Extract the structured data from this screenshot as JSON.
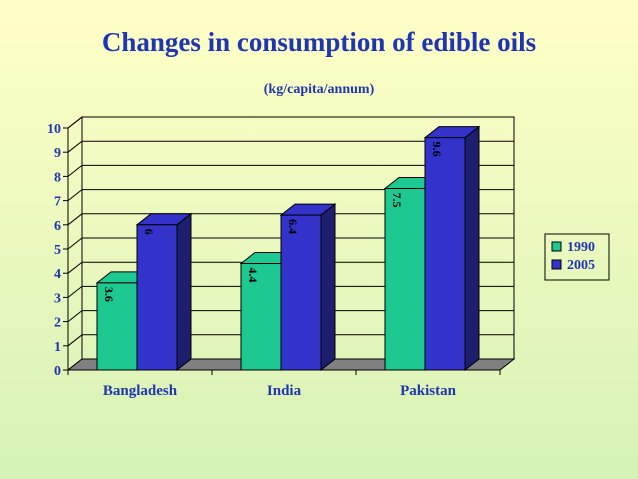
{
  "chart_data": {
    "type": "bar",
    "title": "Changes in consumption of edible oils",
    "subtitle": "(kg/capita/annum)",
    "categories": [
      "Bangladesh",
      "India",
      "Pakistan"
    ],
    "series": [
      {
        "name": "1990",
        "values": [
          3.6,
          4.4,
          7.5
        ],
        "color": "#1ec891",
        "dark_color": "#12805c"
      },
      {
        "name": "2005",
        "values": [
          6,
          6.4,
          9.6
        ],
        "color": "#3333cc",
        "dark_color": "#1e1e6e"
      }
    ],
    "data_labels": [
      [
        "3.6",
        "4.4",
        "7.5"
      ],
      [
        "6",
        "6.4",
        "9.6"
      ]
    ],
    "ylim": [
      0,
      10
    ],
    "yticks": [
      "0",
      "1",
      "2",
      "3",
      "4",
      "5",
      "6",
      "7",
      "8",
      "9",
      "10"
    ],
    "xlabel": "",
    "ylabel": "",
    "legend_position": "right",
    "grid": true
  }
}
